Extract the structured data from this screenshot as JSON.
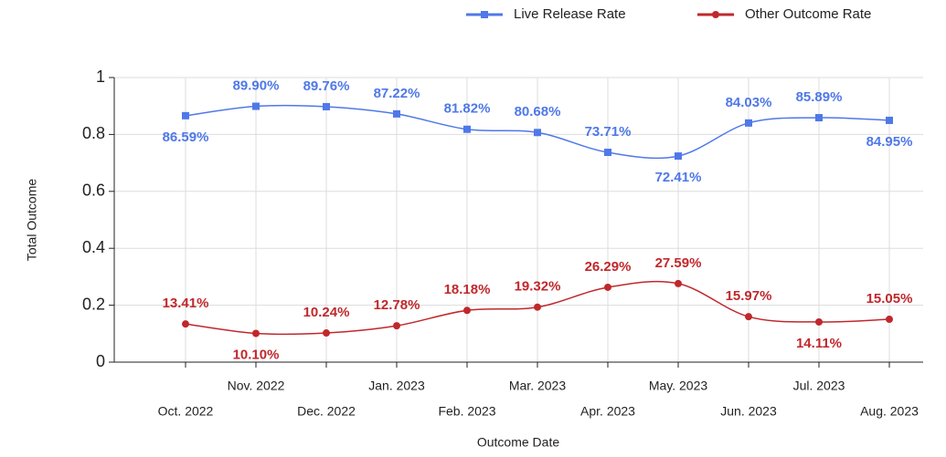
{
  "chart_data": {
    "type": "line",
    "x_label": "Outcome Date",
    "y_label": "Total Outcome",
    "categories": [
      "Oct. 2022",
      "Nov. 2022",
      "Dec. 2022",
      "Jan. 2023",
      "Feb. 2023",
      "Mar. 2023",
      "Apr. 2023",
      "May. 2023",
      "Jun. 2023",
      "Jul. 2023",
      "Aug. 2023"
    ],
    "series": [
      {
        "name": "Live Release Rate",
        "color": "#4f78e8",
        "marker": "square",
        "values": [
          0.8659,
          0.899,
          0.8976,
          0.8722,
          0.8182,
          0.8068,
          0.7371,
          0.7241,
          0.8403,
          0.8589,
          0.8495
        ],
        "value_labels": [
          "86.59%",
          "89.90%",
          "89.76%",
          "87.22%",
          "81.82%",
          "80.68%",
          "73.71%",
          "72.41%",
          "84.03%",
          "85.89%",
          "84.95%"
        ]
      },
      {
        "name": "Other Outcome Rate",
        "color": "#c0282c",
        "marker": "circle",
        "values": [
          0.1341,
          0.101,
          0.1024,
          0.1278,
          0.1818,
          0.1932,
          0.2629,
          0.2759,
          0.1597,
          0.1411,
          0.1505
        ],
        "value_labels": [
          "13.41%",
          "10.10%",
          "10.24%",
          "12.78%",
          "18.18%",
          "19.32%",
          "26.29%",
          "27.59%",
          "15.97%",
          "14.11%",
          "15.05%"
        ]
      }
    ],
    "ylim": [
      0,
      1
    ],
    "yticks": [
      0,
      0.2,
      0.4,
      0.6,
      0.8,
      1
    ],
    "grid": true,
    "legend": "top-right",
    "smooth": true
  }
}
